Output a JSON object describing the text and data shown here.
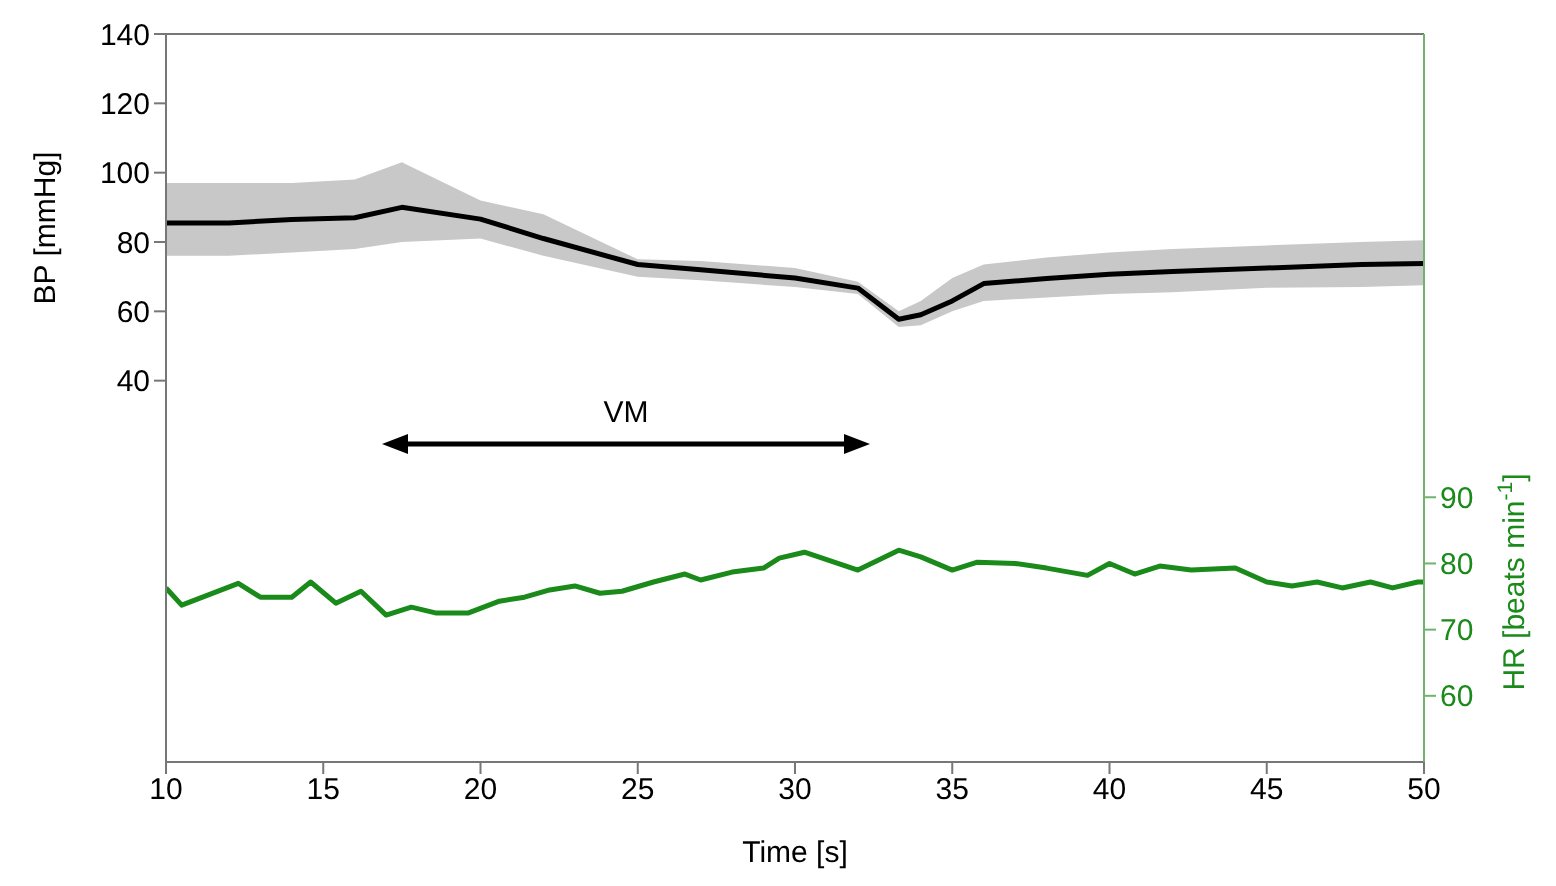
{
  "chart_data": {
    "type": "line",
    "xlabel": "Time [s]",
    "ylabel": "BP [mmHg]",
    "y2label": "HR [beats min$^{-1}$]",
    "xlim": [
      10,
      50
    ],
    "xticks": [
      10,
      15,
      20,
      25,
      30,
      35,
      40,
      45,
      50
    ],
    "ylim": [
      -70,
      140
    ],
    "yticks": [
      40,
      60,
      80,
      100,
      120,
      140
    ],
    "y2lim": [
      50,
      160
    ],
    "y2ticks": [
      60,
      70,
      80,
      90
    ],
    "grid": false,
    "legend": false,
    "marker": "none",
    "line_style": "solid",
    "annotations": [
      "VM"
    ],
    "series": [
      {
        "color": "#000000",
        "x": [
          10,
          12,
          14,
          16,
          17.5,
          20,
          22,
          25,
          27,
          30,
          32,
          33.3,
          34,
          35,
          36,
          38,
          40,
          42,
          45,
          48,
          50
        ],
        "values": [
          85.5,
          85.5,
          86.5,
          87,
          90,
          86.6,
          81,
          73.5,
          72,
          69.6,
          66.7,
          57.7,
          59,
          63,
          68,
          69.5,
          70.7,
          71.5,
          72.5,
          73.5,
          73.8
        ],
        "lower": [
          76,
          76,
          77,
          78,
          80,
          81,
          76,
          70,
          69,
          67,
          65,
          55.5,
          56,
          60,
          63,
          64,
          65,
          65.5,
          66.8,
          67,
          67.5
        ],
        "upper": [
          97,
          97,
          97,
          98,
          103,
          92,
          88,
          75,
          74.5,
          72.5,
          68.5,
          60,
          63,
          69.6,
          73.5,
          75.5,
          77,
          78,
          79,
          80,
          80.5
        ]
      },
      {
        "color": "#1a8a1a",
        "axis": "y2",
        "x": [
          10,
          10.5,
          12.3,
          13,
          14,
          14.6,
          15.4,
          16.2,
          17,
          17.8,
          18.6,
          19.6,
          20.6,
          21.4,
          22.2,
          23,
          23.8,
          24.5,
          25.5,
          26.5,
          27,
          28,
          29,
          29.5,
          30.3,
          32,
          33.3,
          34,
          35,
          35.8,
          37,
          38,
          39.3,
          40,
          40.8,
          41.6,
          42.6,
          44,
          45,
          45.8,
          46.6,
          47.4,
          48.3,
          49,
          49.8,
          50
        ],
        "values": [
          76.3,
          73.7,
          77,
          74.9,
          74.9,
          77.2,
          74,
          75.8,
          72.2,
          73.4,
          72.5,
          72.5,
          74.3,
          74.9,
          76,
          76.6,
          75.5,
          75.8,
          77.2,
          78.4,
          77.5,
          78.7,
          79.3,
          80.8,
          81.7,
          79,
          82,
          81,
          79,
          80.2,
          80,
          79.3,
          78.2,
          80,
          78.4,
          79.6,
          79,
          79.3,
          77.2,
          76.6,
          77.2,
          76.3,
          77.2,
          76.3,
          77.2,
          77.2
        ]
      }
    ]
  }
}
